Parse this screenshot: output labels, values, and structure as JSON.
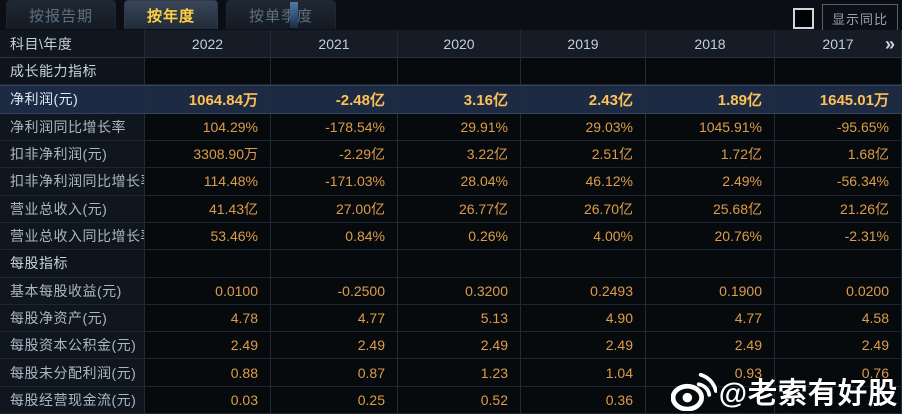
{
  "tabs": [
    {
      "label": "按报告期",
      "active": false
    },
    {
      "label": "按年度",
      "active": true
    },
    {
      "label": "按单季度",
      "active": false
    }
  ],
  "controls": {
    "show_yoy_label": "显示同比",
    "checkbox_checked": false
  },
  "table": {
    "corner_label": "科目\\年度",
    "years": [
      "2022",
      "2021",
      "2020",
      "2019",
      "2018",
      "2017"
    ],
    "more_icon": "»",
    "rows": [
      {
        "type": "section",
        "highlight": false,
        "label": "成长能力指标",
        "values": [
          "",
          "",
          "",
          "",
          "",
          ""
        ]
      },
      {
        "type": "data",
        "highlight": true,
        "label": "净利润(元)",
        "values": [
          "1064.84万",
          "-2.48亿",
          "3.16亿",
          "2.43亿",
          "1.89亿",
          "1645.01万"
        ]
      },
      {
        "type": "data",
        "highlight": false,
        "label": "净利润同比增长率",
        "values": [
          "104.29%",
          "-178.54%",
          "29.91%",
          "29.03%",
          "1045.91%",
          "-95.65%"
        ]
      },
      {
        "type": "data",
        "highlight": false,
        "label": "扣非净利润(元)",
        "values": [
          "3308.90万",
          "-2.29亿",
          "3.22亿",
          "2.51亿",
          "1.72亿",
          "1.68亿"
        ]
      },
      {
        "type": "data",
        "highlight": false,
        "label": "扣非净利润同比增长率",
        "values": [
          "114.48%",
          "-171.03%",
          "28.04%",
          "46.12%",
          "2.49%",
          "-56.34%"
        ]
      },
      {
        "type": "data",
        "highlight": false,
        "label": "营业总收入(元)",
        "values": [
          "41.43亿",
          "27.00亿",
          "26.77亿",
          "26.70亿",
          "25.68亿",
          "21.26亿"
        ]
      },
      {
        "type": "data",
        "highlight": false,
        "label": "营业总收入同比增长率",
        "values": [
          "53.46%",
          "0.84%",
          "0.26%",
          "4.00%",
          "20.76%",
          "-2.31%"
        ]
      },
      {
        "type": "section",
        "highlight": false,
        "label": "每股指标",
        "values": [
          "",
          "",
          "",
          "",
          "",
          ""
        ]
      },
      {
        "type": "data",
        "highlight": false,
        "label": "基本每股收益(元)",
        "values": [
          "0.0100",
          "-0.2500",
          "0.3200",
          "0.2493",
          "0.1900",
          "0.0200"
        ]
      },
      {
        "type": "data",
        "highlight": false,
        "label": "每股净资产(元)",
        "values": [
          "4.78",
          "4.77",
          "5.13",
          "4.90",
          "4.77",
          "4.58"
        ]
      },
      {
        "type": "data",
        "highlight": false,
        "label": "每股资本公积金(元)",
        "values": [
          "2.49",
          "2.49",
          "2.49",
          "2.49",
          "2.49",
          "2.49"
        ]
      },
      {
        "type": "data",
        "highlight": false,
        "label": "每股未分配利润(元)",
        "values": [
          "0.88",
          "0.87",
          "1.23",
          "1.04",
          "0.93",
          "0.76"
        ]
      },
      {
        "type": "data",
        "highlight": false,
        "label": "每股经营现金流(元)",
        "values": [
          "0.03",
          "0.25",
          "0.52",
          "0.36",
          "",
          ""
        ]
      }
    ]
  },
  "watermark": {
    "text": "@老索有好股"
  },
  "colors": {
    "accent_gold": "#ffd042",
    "value_orange": "#dd9c49",
    "highlight_row_bg": "#1c2a44",
    "header_bg": "#151c26",
    "page_bg": "#0a0e13"
  }
}
